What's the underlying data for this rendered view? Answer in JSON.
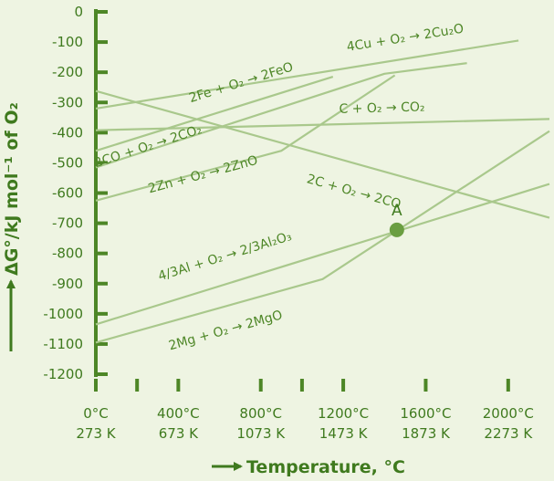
{
  "chart_data": {
    "type": "line",
    "title": "",
    "xlabel": "Temperature, °C",
    "ylabel": "ΔG°/kJ mol⁻¹ of O₂",
    "xlim": [
      0,
      2200
    ],
    "ylim": [
      -1200,
      0
    ],
    "y_ticks": [
      0,
      -100,
      -200,
      -300,
      -400,
      -500,
      -600,
      -700,
      -800,
      -900,
      -1000,
      -1100,
      -1200
    ],
    "x_ticks": [
      {
        "value": 0,
        "celsius": "0°C",
        "kelvin": "273 K"
      },
      {
        "value": 400,
        "celsius": "400°C",
        "kelvin": "673 K"
      },
      {
        "value": 800,
        "celsius": "800°C",
        "kelvin": "1073 K"
      },
      {
        "value": 1200,
        "celsius": "1200°C",
        "kelvin": "1473 K"
      },
      {
        "value": 1600,
        "celsius": "1600°C",
        "kelvin": "1873 K"
      },
      {
        "value": 2000,
        "celsius": "2000°C",
        "kelvin": "2273 K"
      }
    ],
    "minor_x_ticks": [
      200,
      1000
    ],
    "grid": false,
    "series": [
      {
        "name": "4Cu + O₂ → 2Cu₂O",
        "x": [
          0,
          2050
        ],
        "y": [
          -320,
          -95
        ]
      },
      {
        "name": "2Fe + O₂ → 2FeO",
        "x": [
          0,
          1150
        ],
        "y": [
          -460,
          -215
        ]
      },
      {
        "name": "C + O₂ → CO₂",
        "x": [
          0,
          2200
        ],
        "y": [
          -392,
          -355
        ]
      },
      {
        "name": "2C + O₂ → 2CO",
        "x": [
          0,
          2200
        ],
        "y": [
          -262,
          -682
        ]
      },
      {
        "name": "2CO + O₂ → 2CO₂",
        "x": [
          0,
          1400,
          1800
        ],
        "y": [
          -515,
          -205,
          -170
        ]
      },
      {
        "name": "2Zn + O₂ → 2ZnO",
        "x": [
          0,
          900,
          1450
        ],
        "y": [
          -625,
          -460,
          -210
        ]
      },
      {
        "name": "4/3Al + O₂ → 2/3Al₂O₃",
        "x": [
          0,
          2200
        ],
        "y": [
          -1035,
          -570
        ]
      },
      {
        "name": "2Mg + O₂ → 2MgO",
        "x": [
          0,
          1100,
          2200
        ],
        "y": [
          -1095,
          -885,
          -395
        ]
      }
    ],
    "label_positions": [
      {
        "x": 1220,
        "y": -130
      },
      {
        "x": 460,
        "y": -300
      },
      {
        "x": 1180,
        "y": -335
      },
      {
        "x": 1020,
        "y": -565
      },
      {
        "x": 0,
        "y": -515
      },
      {
        "x": 260,
        "y": -600
      },
      {
        "x": 310,
        "y": -890
      },
      {
        "x": 360,
        "y": -1120
      }
    ],
    "annotations": [
      {
        "text": "A",
        "x": 1460,
        "y": -722
      }
    ],
    "color": "#4d8626"
  }
}
